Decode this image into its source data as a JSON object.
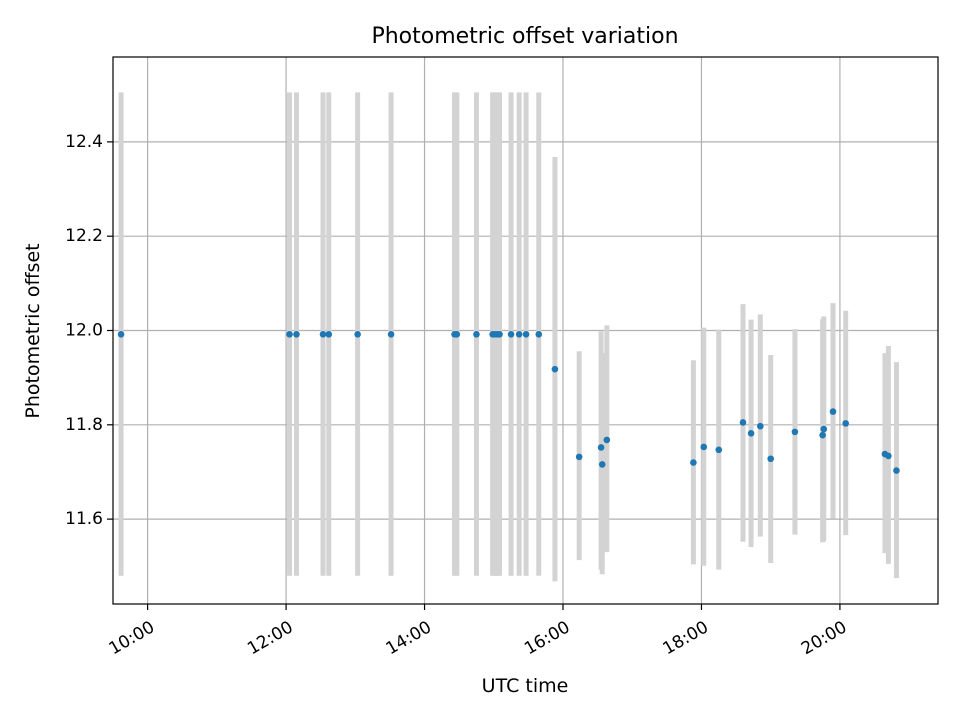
{
  "chart_data": {
    "type": "scatter",
    "title": "Photometric offset variation",
    "xlabel": "UTC time",
    "ylabel": "Photometric offset",
    "x_unit": "UTC time (HH:MM)",
    "xlim": [
      "09:30",
      "21:25"
    ],
    "ylim": [
      11.42,
      12.58
    ],
    "grid": true,
    "x_ticks": [
      "10:00",
      "12:00",
      "14:00",
      "16:00",
      "18:00",
      "20:00"
    ],
    "y_ticks": [
      11.6,
      11.8,
      12.0,
      12.2,
      12.4
    ],
    "y_tick_labels": [
      "11.6",
      "11.8",
      "12.0",
      "12.2",
      "12.4"
    ],
    "colors": {
      "points": "#1f77b4",
      "error_bars": "#d3d3d3",
      "grid": "#b0b0b0",
      "axes": "#000000"
    },
    "series": [
      {
        "points": [
          {
            "x": "09:37",
            "y": 11.992,
            "y_low": 11.48,
            "y_high": 12.505
          },
          {
            "x": "12:03",
            "y": 11.992,
            "y_low": 11.48,
            "y_high": 12.505
          },
          {
            "x": "12:09",
            "y": 11.992,
            "y_low": 11.48,
            "y_high": 12.505
          },
          {
            "x": "12:32",
            "y": 11.992,
            "y_low": 11.48,
            "y_high": 12.505
          },
          {
            "x": "12:37",
            "y": 11.992,
            "y_low": 11.48,
            "y_high": 12.505
          },
          {
            "x": "13:02",
            "y": 11.992,
            "y_low": 11.48,
            "y_high": 12.505
          },
          {
            "x": "13:31",
            "y": 11.992,
            "y_low": 11.48,
            "y_high": 12.505
          },
          {
            "x": "14:26",
            "y": 11.992,
            "y_low": 11.48,
            "y_high": 12.505
          },
          {
            "x": "14:28",
            "y": 11.992,
            "y_low": 11.48,
            "y_high": 12.505
          },
          {
            "x": "14:45",
            "y": 11.992,
            "y_low": 11.48,
            "y_high": 12.505
          },
          {
            "x": "14:59",
            "y": 11.992,
            "y_low": 11.48,
            "y_high": 12.505
          },
          {
            "x": "15:01",
            "y": 11.992,
            "y_low": 11.48,
            "y_high": 12.505
          },
          {
            "x": "15:03",
            "y": 11.992,
            "y_low": 11.48,
            "y_high": 12.505
          },
          {
            "x": "15:05",
            "y": 11.992,
            "y_low": 11.48,
            "y_high": 12.505
          },
          {
            "x": "15:15",
            "y": 11.992,
            "y_low": 11.48,
            "y_high": 12.505
          },
          {
            "x": "15:22",
            "y": 11.992,
            "y_low": 11.48,
            "y_high": 12.505
          },
          {
            "x": "15:28",
            "y": 11.992,
            "y_low": 11.48,
            "y_high": 12.505
          },
          {
            "x": "15:39",
            "y": 11.992,
            "y_low": 11.48,
            "y_high": 12.505
          },
          {
            "x": "15:53",
            "y": 11.918,
            "y_low": 11.468,
            "y_high": 12.368
          },
          {
            "x": "16:14",
            "y": 11.732,
            "y_low": 11.513,
            "y_high": 11.956
          },
          {
            "x": "16:33",
            "y": 11.752,
            "y_low": 11.493,
            "y_high": 11.998
          },
          {
            "x": "16:34",
            "y": 11.716,
            "y_low": 11.483,
            "y_high": 11.952
          },
          {
            "x": "16:38",
            "y": 11.768,
            "y_low": 11.53,
            "y_high": 12.011
          },
          {
            "x": "17:53",
            "y": 11.72,
            "y_low": 11.504,
            "y_high": 11.937
          },
          {
            "x": "18:02",
            "y": 11.753,
            "y_low": 11.501,
            "y_high": 12.006
          },
          {
            "x": "18:15",
            "y": 11.747,
            "y_low": 11.493,
            "y_high": 12.002
          },
          {
            "x": "18:36",
            "y": 11.805,
            "y_low": 11.552,
            "y_high": 12.056
          },
          {
            "x": "18:43",
            "y": 11.782,
            "y_low": 11.541,
            "y_high": 12.023
          },
          {
            "x": "18:51",
            "y": 11.797,
            "y_low": 11.563,
            "y_high": 12.034
          },
          {
            "x": "19:00",
            "y": 11.728,
            "y_low": 11.507,
            "y_high": 11.948
          },
          {
            "x": "19:21",
            "y": 11.785,
            "y_low": 11.567,
            "y_high": 12.003
          },
          {
            "x": "19:45",
            "y": 11.778,
            "y_low": 11.551,
            "y_high": 12.024
          },
          {
            "x": "19:46",
            "y": 11.791,
            "y_low": 11.553,
            "y_high": 12.03
          },
          {
            "x": "19:54",
            "y": 11.828,
            "y_low": 11.601,
            "y_high": 12.058
          },
          {
            "x": "20:05",
            "y": 11.803,
            "y_low": 11.566,
            "y_high": 12.042
          },
          {
            "x": "20:39",
            "y": 11.738,
            "y_low": 11.528,
            "y_high": 11.952
          },
          {
            "x": "20:42",
            "y": 11.734,
            "y_low": 11.505,
            "y_high": 11.967
          },
          {
            "x": "20:49",
            "y": 11.703,
            "y_low": 11.475,
            "y_high": 11.933
          }
        ]
      }
    ]
  }
}
